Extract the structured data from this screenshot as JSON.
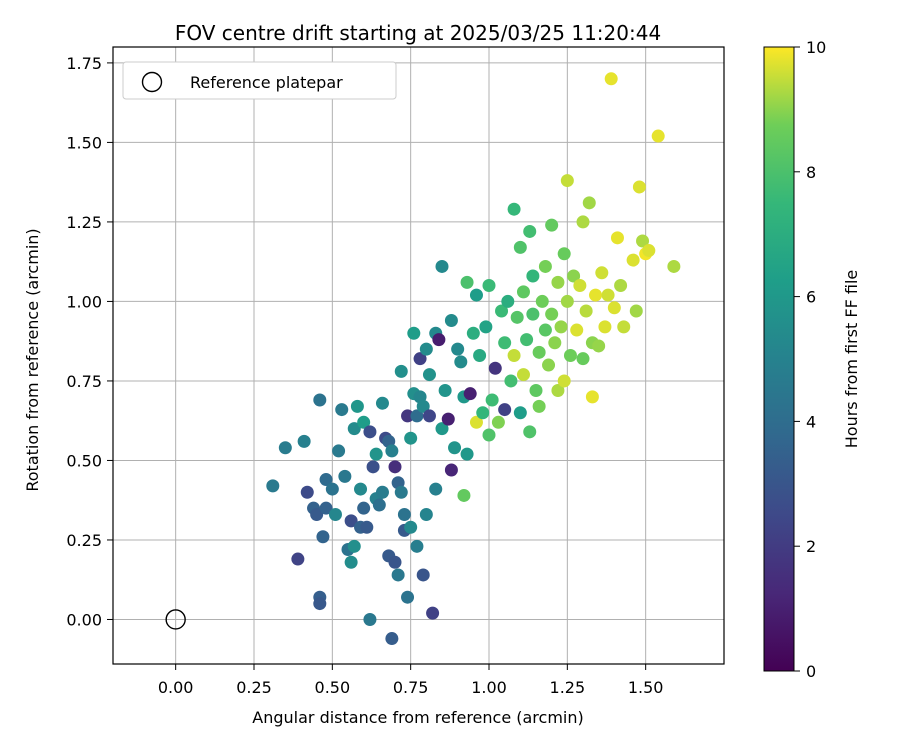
{
  "chart_data": {
    "type": "scatter",
    "title": "FOV centre drift starting at 2025/03/25 11:20:44",
    "xlabel": "Angular distance from reference (arcmin)",
    "ylabel": "Rotation from reference (arcmin)",
    "xlim": [
      -0.2,
      1.75
    ],
    "ylim": [
      -0.14,
      1.8
    ],
    "xticks": [
      "0.00",
      "0.25",
      "0.50",
      "0.75",
      "1.00",
      "1.25",
      "1.50"
    ],
    "yticks": [
      "0.00",
      "0.25",
      "0.50",
      "0.75",
      "1.00",
      "1.25",
      "1.50",
      "1.75"
    ],
    "grid": true,
    "legend": {
      "placement": "top-left",
      "entries": [
        "Reference platepar"
      ]
    },
    "reference_point": {
      "x": 0.0,
      "y": 0.0,
      "label": "Reference platepar"
    },
    "colorbar": {
      "label": "Hours from first FF file",
      "colormap": "viridis",
      "range": [
        0,
        10
      ],
      "ticks": [
        "0",
        "2",
        "4",
        "6",
        "8",
        "10"
      ]
    },
    "series": [
      {
        "points": [
          [
            0.31,
            0.42,
            4.6
          ],
          [
            0.35,
            0.54,
            4.7
          ],
          [
            0.39,
            0.19,
            2.3
          ],
          [
            0.41,
            0.56,
            4.9
          ],
          [
            0.42,
            0.4,
            2.6
          ],
          [
            0.44,
            0.35,
            3.5
          ],
          [
            0.45,
            0.33,
            3.2
          ],
          [
            0.46,
            0.07,
            3.4
          ],
          [
            0.46,
            0.05,
            3.1
          ],
          [
            0.46,
            0.69,
            4.3
          ],
          [
            0.47,
            0.26,
            3.6
          ],
          [
            0.48,
            0.35,
            3.5
          ],
          [
            0.48,
            0.44,
            3.9
          ],
          [
            0.5,
            0.41,
            4.3
          ],
          [
            0.51,
            0.33,
            5.2
          ],
          [
            0.52,
            0.53,
            4.6
          ],
          [
            0.53,
            0.66,
            4.6
          ],
          [
            0.54,
            0.45,
            4.5
          ],
          [
            0.55,
            0.22,
            4.3
          ],
          [
            0.56,
            0.18,
            5.5
          ],
          [
            0.56,
            0.31,
            2.7
          ],
          [
            0.57,
            0.6,
            5.4
          ],
          [
            0.57,
            0.23,
            5.6
          ],
          [
            0.58,
            0.67,
            5.9
          ],
          [
            0.59,
            0.29,
            3.5
          ],
          [
            0.59,
            0.41,
            5.3
          ],
          [
            0.6,
            0.35,
            3.6
          ],
          [
            0.6,
            0.62,
            6.2
          ],
          [
            0.61,
            0.29,
            3.2
          ],
          [
            0.62,
            0.0,
            4.5
          ],
          [
            0.62,
            0.59,
            2.7
          ],
          [
            0.63,
            0.48,
            2.8
          ],
          [
            0.64,
            0.38,
            4.9
          ],
          [
            0.64,
            0.52,
            5.8
          ],
          [
            0.65,
            0.36,
            4.1
          ],
          [
            0.66,
            0.4,
            4.7
          ],
          [
            0.66,
            0.68,
            5.3
          ],
          [
            0.67,
            0.57,
            2.6
          ],
          [
            0.68,
            0.56,
            3.6
          ],
          [
            0.68,
            0.2,
            3.2
          ],
          [
            0.69,
            0.53,
            4.9
          ],
          [
            0.69,
            -0.06,
            3.3
          ],
          [
            0.7,
            0.48,
            1.5
          ],
          [
            0.7,
            0.18,
            3.0
          ],
          [
            0.71,
            0.43,
            3.6
          ],
          [
            0.71,
            0.14,
            4.5
          ],
          [
            0.72,
            0.4,
            4.6
          ],
          [
            0.72,
            0.78,
            5.6
          ],
          [
            0.73,
            0.28,
            3.2
          ],
          [
            0.73,
            0.33,
            4.3
          ],
          [
            0.74,
            0.07,
            4.3
          ],
          [
            0.74,
            0.64,
            1.8
          ],
          [
            0.75,
            0.57,
            5.8
          ],
          [
            0.75,
            0.29,
            5.3
          ],
          [
            0.76,
            0.71,
            5.6
          ],
          [
            0.76,
            0.9,
            6.2
          ],
          [
            0.77,
            0.64,
            4.0
          ],
          [
            0.77,
            0.23,
            4.8
          ],
          [
            0.78,
            0.7,
            5.2
          ],
          [
            0.78,
            0.82,
            2.2
          ],
          [
            0.79,
            0.67,
            5.3
          ],
          [
            0.79,
            0.14,
            3.0
          ],
          [
            0.8,
            0.85,
            5.4
          ],
          [
            0.8,
            0.33,
            5.1
          ],
          [
            0.81,
            0.64,
            2.4
          ],
          [
            0.81,
            0.77,
            5.7
          ],
          [
            0.82,
            0.02,
            2.2
          ],
          [
            0.83,
            0.41,
            4.9
          ],
          [
            0.83,
            0.9,
            5.3
          ],
          [
            0.84,
            0.88,
            0.9
          ],
          [
            0.85,
            0.6,
            6.0
          ],
          [
            0.85,
            1.11,
            5.3
          ],
          [
            0.86,
            0.72,
            5.8
          ],
          [
            0.87,
            0.63,
            1.0
          ],
          [
            0.88,
            0.47,
            1.2
          ],
          [
            0.88,
            0.94,
            5.4
          ],
          [
            0.89,
            0.54,
            5.8
          ],
          [
            0.9,
            0.85,
            5.3
          ],
          [
            0.91,
            0.81,
            5.4
          ],
          [
            0.92,
            0.7,
            6.0
          ],
          [
            0.92,
            0.39,
            8.5
          ],
          [
            0.93,
            1.06,
            8.0
          ],
          [
            0.93,
            0.52,
            6.0
          ],
          [
            0.94,
            0.71,
            1.0
          ],
          [
            0.95,
            0.9,
            7.0
          ],
          [
            0.96,
            0.62,
            9.7
          ],
          [
            0.96,
            1.02,
            6.2
          ],
          [
            0.97,
            0.83,
            6.8
          ],
          [
            0.98,
            0.65,
            7.4
          ],
          [
            0.99,
            0.92,
            6.5
          ],
          [
            1.0,
            1.05,
            7.6
          ],
          [
            1.0,
            0.58,
            8.1
          ],
          [
            1.01,
            0.69,
            7.7
          ],
          [
            1.02,
            0.79,
            1.7
          ],
          [
            1.03,
            0.62,
            8.9
          ],
          [
            1.04,
            0.97,
            7.6
          ],
          [
            1.05,
            0.66,
            2.2
          ],
          [
            1.05,
            0.87,
            7.7
          ],
          [
            1.06,
            1.0,
            7.0
          ],
          [
            1.07,
            0.75,
            7.8
          ],
          [
            1.08,
            0.83,
            9.5
          ],
          [
            1.08,
            1.29,
            7.5
          ],
          [
            1.09,
            0.95,
            8.2
          ],
          [
            1.1,
            0.65,
            6.2
          ],
          [
            1.1,
            1.17,
            8.1
          ],
          [
            1.11,
            1.03,
            8.4
          ],
          [
            1.11,
            0.77,
            9.5
          ],
          [
            1.12,
            0.88,
            7.8
          ],
          [
            1.13,
            0.59,
            8.1
          ],
          [
            1.13,
            1.22,
            7.8
          ],
          [
            1.14,
            0.96,
            8.0
          ],
          [
            1.14,
            1.08,
            7.4
          ],
          [
            1.15,
            0.72,
            8.4
          ],
          [
            1.16,
            0.84,
            8.6
          ],
          [
            1.16,
            0.67,
            8.8
          ],
          [
            1.17,
            1.0,
            8.7
          ],
          [
            1.18,
            0.91,
            8.3
          ],
          [
            1.18,
            1.11,
            8.8
          ],
          [
            1.19,
            0.8,
            9.0
          ],
          [
            1.2,
            1.24,
            8.5
          ],
          [
            1.2,
            0.96,
            8.8
          ],
          [
            1.21,
            0.87,
            9.0
          ],
          [
            1.22,
            1.06,
            9.1
          ],
          [
            1.22,
            0.72,
            9.3
          ],
          [
            1.23,
            0.92,
            9.1
          ],
          [
            1.24,
            1.15,
            8.6
          ],
          [
            1.24,
            0.75,
            9.6
          ],
          [
            1.25,
            1.38,
            9.5
          ],
          [
            1.25,
            1.0,
            9.2
          ],
          [
            1.26,
            0.83,
            8.7
          ],
          [
            1.27,
            1.08,
            9.0
          ],
          [
            1.28,
            0.91,
            9.7
          ],
          [
            1.29,
            1.05,
            9.6
          ],
          [
            1.3,
            1.25,
            9.3
          ],
          [
            1.3,
            0.82,
            8.6
          ],
          [
            1.31,
            0.97,
            9.4
          ],
          [
            1.32,
            1.31,
            9.2
          ],
          [
            1.33,
            0.7,
            9.8
          ],
          [
            1.33,
            0.87,
            9.0
          ],
          [
            1.34,
            1.02,
            9.8
          ],
          [
            1.35,
            0.86,
            9.1
          ],
          [
            1.36,
            1.09,
            9.6
          ],
          [
            1.37,
            0.92,
            9.7
          ],
          [
            1.38,
            1.02,
            9.6
          ],
          [
            1.39,
            1.7,
            9.8
          ],
          [
            1.4,
            0.98,
            9.7
          ],
          [
            1.41,
            1.2,
            9.8
          ],
          [
            1.42,
            1.05,
            9.3
          ],
          [
            1.43,
            0.92,
            9.5
          ],
          [
            1.46,
            1.13,
            9.7
          ],
          [
            1.47,
            0.97,
            9.2
          ],
          [
            1.48,
            1.36,
            9.7
          ],
          [
            1.49,
            1.19,
            9.3
          ],
          [
            1.5,
            1.15,
            9.9
          ],
          [
            1.51,
            1.16,
            9.7
          ],
          [
            1.54,
            1.52,
            9.8
          ],
          [
            1.59,
            1.11,
            9.3
          ]
        ]
      }
    ]
  }
}
